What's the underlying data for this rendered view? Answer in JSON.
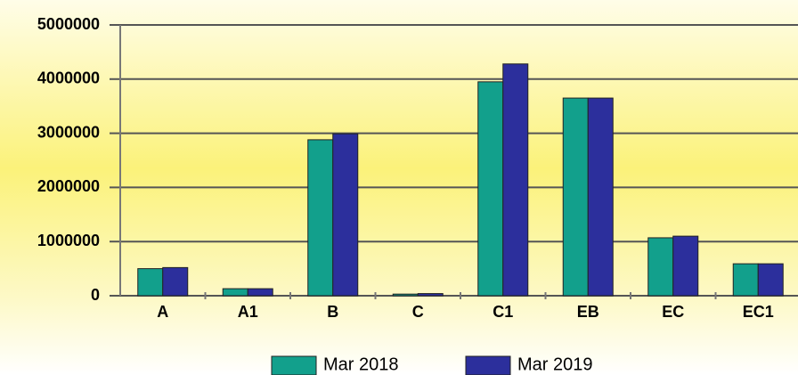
{
  "chart_data": {
    "type": "bar",
    "categories": [
      "A",
      "A1",
      "B",
      "C",
      "C1",
      "EB",
      "EC",
      "EC1"
    ],
    "series": [
      {
        "name": "Mar 2018",
        "color": "#12a08c",
        "values": [
          500000,
          130000,
          2880000,
          30000,
          3950000,
          3650000,
          1070000,
          590000
        ]
      },
      {
        "name": "Mar 2019",
        "color": "#2c2f9c",
        "values": [
          520000,
          130000,
          2990000,
          40000,
          4280000,
          3650000,
          1100000,
          590000
        ]
      }
    ],
    "ylim": [
      0,
      5000000
    ],
    "yticks": [
      0,
      1000000,
      2000000,
      3000000,
      4000000,
      5000000
    ],
    "grid": true
  }
}
